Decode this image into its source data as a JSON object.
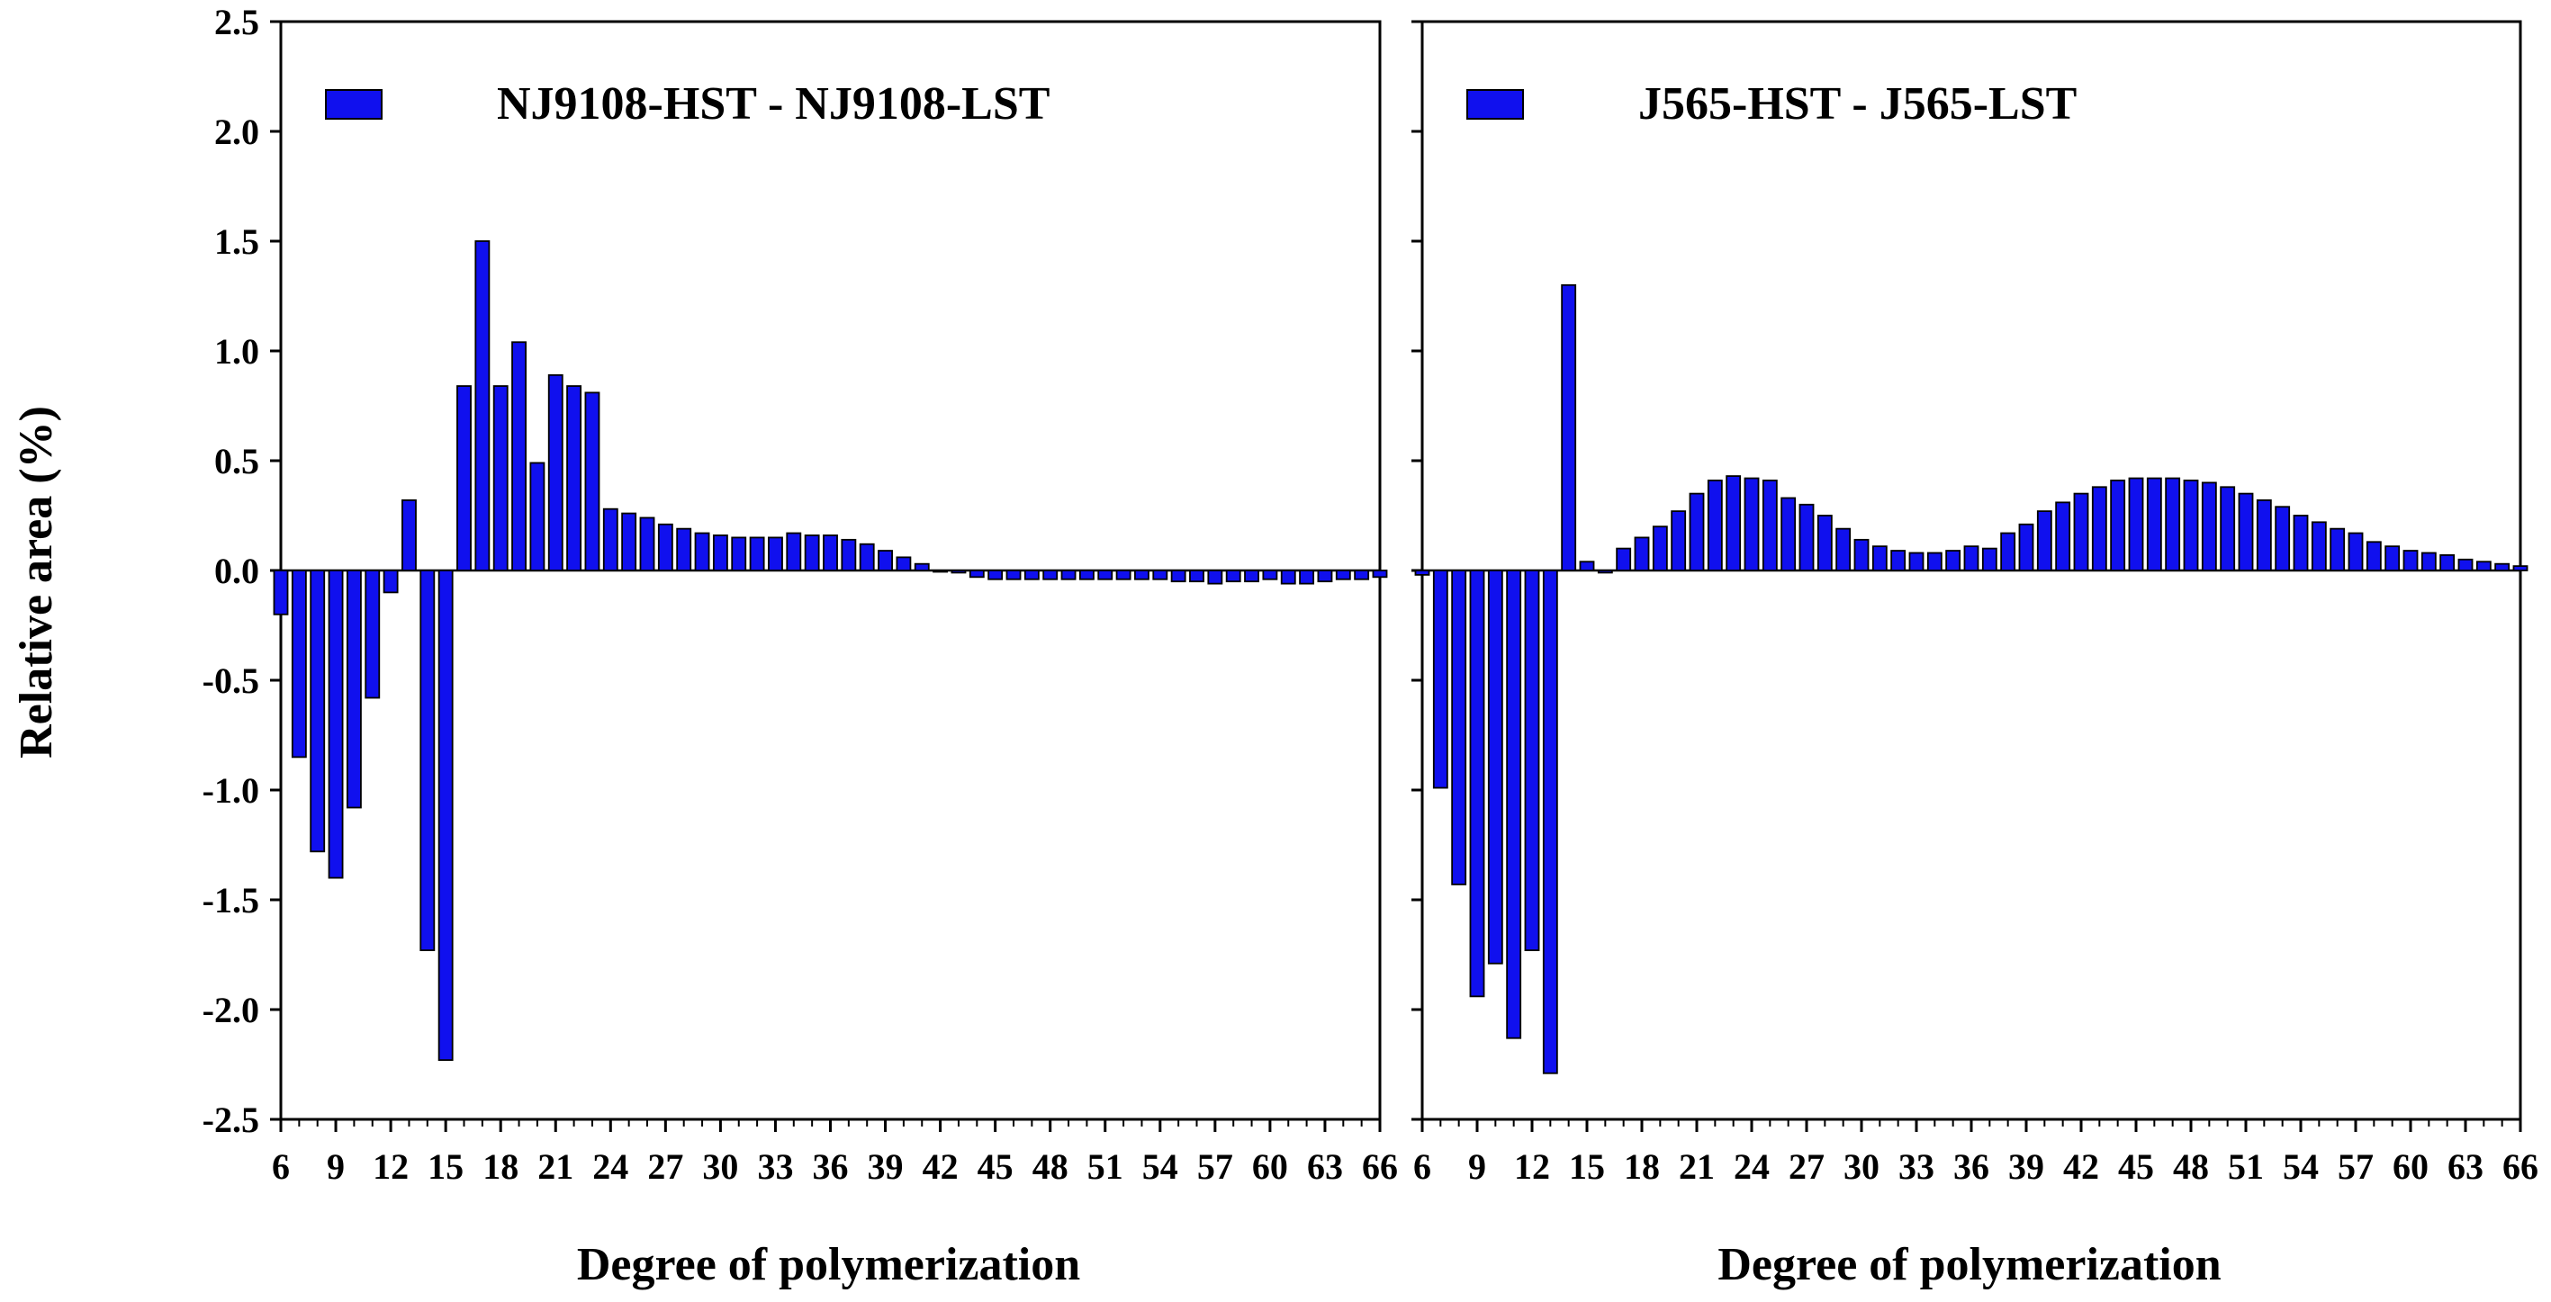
{
  "figure": {
    "ylabel": "Relative area (%)"
  },
  "chart_data": [
    {
      "type": "bar",
      "legend": "NJ9108-HST - NJ9108-LST",
      "xlabel": "Degree of polymerization",
      "ylabel": "Relative area (%)",
      "ylim": [
        -2.5,
        2.5
      ],
      "yticks": [
        "2.5",
        "2.0",
        "1.5",
        "1.0",
        "0.5",
        "0.0",
        "-0.5",
        "-1.0",
        "-1.5",
        "-2.0",
        "-2.5"
      ],
      "xticks": [
        "6",
        "9",
        "12",
        "15",
        "18",
        "21",
        "24",
        "27",
        "30",
        "33",
        "36",
        "39",
        "42",
        "45",
        "48",
        "51",
        "54",
        "57",
        "60",
        "63",
        "66"
      ],
      "x": [
        6,
        7,
        8,
        9,
        10,
        11,
        12,
        13,
        14,
        15,
        16,
        17,
        18,
        19,
        20,
        21,
        22,
        23,
        24,
        25,
        26,
        27,
        28,
        29,
        30,
        31,
        32,
        33,
        34,
        35,
        36,
        37,
        38,
        39,
        40,
        41,
        42,
        43,
        44,
        45,
        46,
        47,
        48,
        49,
        50,
        51,
        52,
        53,
        54,
        55,
        56,
        57,
        58,
        59,
        60,
        61,
        62,
        63,
        64,
        65,
        66
      ],
      "values": [
        -0.2,
        -0.85,
        -1.28,
        -1.4,
        -1.08,
        -0.58,
        -0.1,
        0.32,
        -1.73,
        -2.23,
        0.84,
        1.5,
        0.84,
        1.04,
        0.49,
        0.89,
        0.84,
        0.81,
        0.28,
        0.26,
        0.24,
        0.21,
        0.19,
        0.17,
        0.16,
        0.15,
        0.15,
        0.15,
        0.17,
        0.16,
        0.16,
        0.14,
        0.12,
        0.09,
        0.06,
        0.03,
        0.0,
        -0.01,
        -0.03,
        -0.04,
        -0.04,
        -0.04,
        -0.04,
        -0.04,
        -0.04,
        -0.04,
        -0.04,
        -0.04,
        -0.04,
        -0.05,
        -0.05,
        -0.06,
        -0.05,
        -0.05,
        -0.04,
        -0.06,
        -0.06,
        -0.05,
        -0.04,
        -0.04,
        -0.03
      ],
      "color": "#1010ee",
      "grid": false,
      "legend_position": "top-left"
    },
    {
      "type": "bar",
      "legend": "J565-HST - J565-LST",
      "xlabel": "Degree of polymerization",
      "ylim": [
        -2.5,
        2.5
      ],
      "xticks": [
        "6",
        "9",
        "12",
        "15",
        "18",
        "21",
        "24",
        "27",
        "30",
        "33",
        "36",
        "39",
        "42",
        "45",
        "48",
        "51",
        "54",
        "57",
        "60",
        "63",
        "66"
      ],
      "x": [
        6,
        7,
        8,
        9,
        10,
        11,
        12,
        13,
        14,
        15,
        16,
        17,
        18,
        19,
        20,
        21,
        22,
        23,
        24,
        25,
        26,
        27,
        28,
        29,
        30,
        31,
        32,
        33,
        34,
        35,
        36,
        37,
        38,
        39,
        40,
        41,
        42,
        43,
        44,
        45,
        46,
        47,
        48,
        49,
        50,
        51,
        52,
        53,
        54,
        55,
        56,
        57,
        58,
        59,
        60,
        61,
        62,
        63,
        64,
        65,
        66
      ],
      "values": [
        -0.02,
        -0.99,
        -1.43,
        -1.94,
        -1.79,
        -2.13,
        -1.73,
        -2.29,
        1.3,
        0.04,
        -0.01,
        0.1,
        0.15,
        0.2,
        0.27,
        0.35,
        0.41,
        0.43,
        0.42,
        0.41,
        0.33,
        0.3,
        0.25,
        0.19,
        0.14,
        0.11,
        0.09,
        0.08,
        0.08,
        0.09,
        0.11,
        0.1,
        0.17,
        0.21,
        0.27,
        0.31,
        0.35,
        0.38,
        0.41,
        0.42,
        0.42,
        0.42,
        0.41,
        0.4,
        0.38,
        0.35,
        0.32,
        0.29,
        0.25,
        0.22,
        0.19,
        0.17,
        0.13,
        0.11,
        0.09,
        0.08,
        0.07,
        0.05,
        0.04,
        0.03,
        0.02
      ],
      "color": "#1010ee",
      "grid": false,
      "legend_position": "top-left"
    }
  ]
}
